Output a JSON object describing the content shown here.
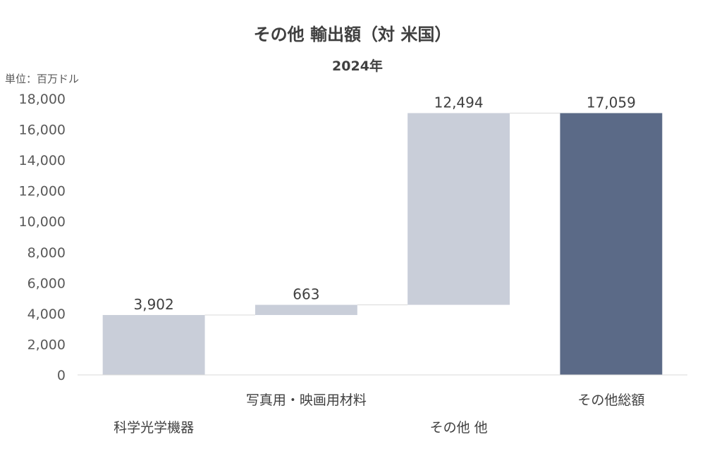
{
  "chart_data": {
    "type": "bar",
    "subtype": "waterfall",
    "title": "その他 輸出額（対 米国）",
    "subtitle": "2024年",
    "unit_label": "単位：百万ドル",
    "categories": [
      "科学光学機器",
      "写真用・映画用材料",
      "その他 他",
      "その他総額"
    ],
    "values": [
      3902,
      663,
      12494,
      17059
    ],
    "data_labels": [
      "3,902",
      "663",
      "12,494",
      "17,059"
    ],
    "is_total": [
      false,
      false,
      false,
      true
    ],
    "y_ticks": [
      "0",
      "2,000",
      "4,000",
      "6,000",
      "8,000",
      "10,000",
      "12,000",
      "14,000",
      "16,000",
      "18,000"
    ],
    "ylim": [
      0,
      18000
    ],
    "grid": false,
    "legend": "none",
    "colors": {
      "increase": "#C9CED9",
      "total": "#5B6A87",
      "connector": "#D9D9D9",
      "axis": "#D9D9D9",
      "text": "#404040"
    }
  }
}
